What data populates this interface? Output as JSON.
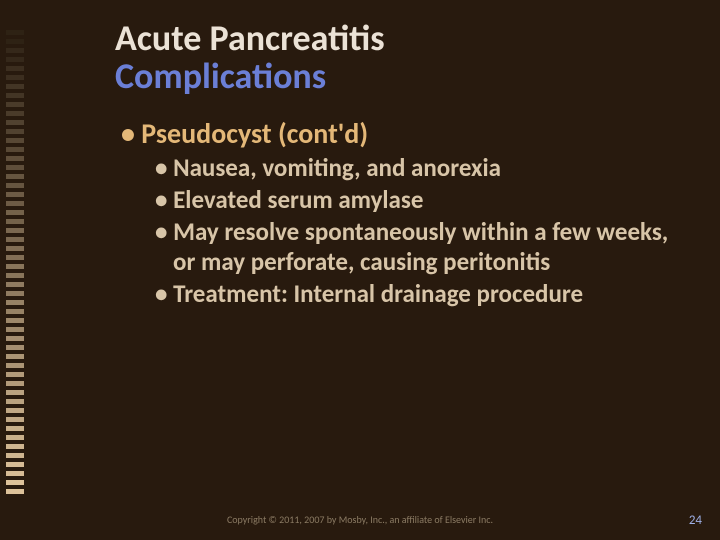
{
  "slide": {
    "title_line1": "Acute Pancreatitis",
    "title_line2": "Complications",
    "bullet_l1": "Pseudocyst (cont'd)",
    "bullets_l2": [
      "Nausea, vomiting, and anorexia",
      "Elevated serum amylase",
      "May resolve spontaneously within a few weeks, or may perforate, causing peritonitis",
      "Treatment: Internal drainage procedure"
    ],
    "copyright": "Copyright © 2011, 2007 by Mosby, Inc., an affiliate of Elsevier Inc.",
    "page_number": "24"
  },
  "style": {
    "background_color": "#281a0e",
    "title_color1": "#ebe2d6",
    "title_color2": "#6b7fd6",
    "title_fontsize": 36,
    "bullet1_color": "#e4b878",
    "bullet1_fontsize": 28,
    "bullet2_color": "#d8c5a8",
    "bullet2_fontsize": 25,
    "copyright_color": "#8a7a63",
    "copyright_fontsize": 10,
    "pagenum_color": "#9fb0e6",
    "pagenum_fontsize": 13,
    "tick_colors": [
      "#2e2214",
      "#2e2214",
      "#35281a",
      "#35281a",
      "#3c2e1f",
      "#3c2e1f",
      "#433525",
      "#433525",
      "#4a3b2a",
      "#4a3b2a",
      "#514230",
      "#514230",
      "#584835",
      "#584835",
      "#5f4e3a",
      "#5f4e3a",
      "#665540",
      "#665540",
      "#6d5b45",
      "#6d5b45",
      "#74624a",
      "#74624a",
      "#7b6850",
      "#7b6850",
      "#826e55",
      "#826e55",
      "#89755a",
      "#89755a",
      "#907b60",
      "#907b60",
      "#978265",
      "#978265",
      "#9e886a",
      "#9e886a",
      "#a58e70",
      "#a58e70",
      "#ac9575",
      "#ac9575",
      "#b39b7a",
      "#b39b7a",
      "#baa280",
      "#baa280",
      "#c1a885",
      "#c1a885",
      "#c8af8a",
      "#c8af8a",
      "#cfb590",
      "#cfb590",
      "#d6bb95",
      "#d6bb95",
      "#ddc29a",
      "#ddc29a"
    ],
    "tick_width": 18,
    "tick_height": 5,
    "tick_gap": 4
  }
}
